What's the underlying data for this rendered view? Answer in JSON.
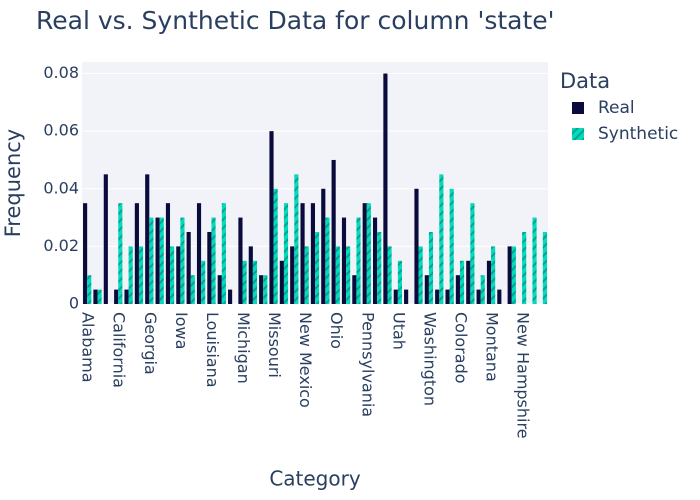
{
  "chart_data": {
    "type": "bar",
    "title": "Real vs. Synthetic Data for column 'state'",
    "x_label": "Category",
    "y_label": "Frequency",
    "legend_title": "Data",
    "categories": [
      "Alabama",
      null,
      null,
      "California",
      null,
      null,
      "Georgia",
      null,
      null,
      "Iowa",
      null,
      null,
      "Louisiana",
      null,
      null,
      "Michigan",
      null,
      null,
      "Missouri",
      null,
      null,
      "New Mexico",
      null,
      null,
      "Ohio",
      null,
      null,
      "Pennsylvania",
      null,
      null,
      "Utah",
      null,
      null,
      "Washington",
      null,
      null,
      "Colorado",
      null,
      null,
      "Montana",
      null,
      null,
      "New Hampshire",
      null,
      null
    ],
    "series": [
      {
        "name": "Real",
        "color": "#0a0a3c",
        "values": [
          0.035,
          0.005,
          0.045,
          0.005,
          0.005,
          0.035,
          0.045,
          0.03,
          0.035,
          0.02,
          0.025,
          0.035,
          0.025,
          0.01,
          0.005,
          0.03,
          0.02,
          0.01,
          0.06,
          0.015,
          0.02,
          0.035,
          0.035,
          0.04,
          0.05,
          0.03,
          0.01,
          0.035,
          0.03,
          0.08,
          0.005,
          0.005,
          0.04,
          0.01,
          0.005,
          0.005,
          0.01,
          0.015,
          0.005,
          0.015,
          0.005,
          0.02,
          0,
          0,
          0
        ]
      },
      {
        "name": "Synthetic",
        "color": "#00dcbe",
        "hatch": true,
        "values": [
          0.01,
          0.005,
          0,
          0.035,
          0.02,
          0.02,
          0.03,
          0.03,
          0.02,
          0.03,
          0.01,
          0.015,
          0.03,
          0.035,
          0,
          0.015,
          0.015,
          0.01,
          0.04,
          0.035,
          0.045,
          0.02,
          0.025,
          0.03,
          0.02,
          0.02,
          0.03,
          0.035,
          0.025,
          0.02,
          0.015,
          0,
          0.02,
          0.025,
          0.045,
          0.04,
          0.015,
          0.035,
          0.01,
          0.02,
          0,
          0.02,
          0.025,
          0.03,
          0.025
        ]
      }
    ],
    "ylim": [
      0,
      0.084
    ],
    "yticks": [
      0,
      0.02,
      0.04,
      0.06,
      0.08
    ],
    "grid": true,
    "legend": "right"
  }
}
